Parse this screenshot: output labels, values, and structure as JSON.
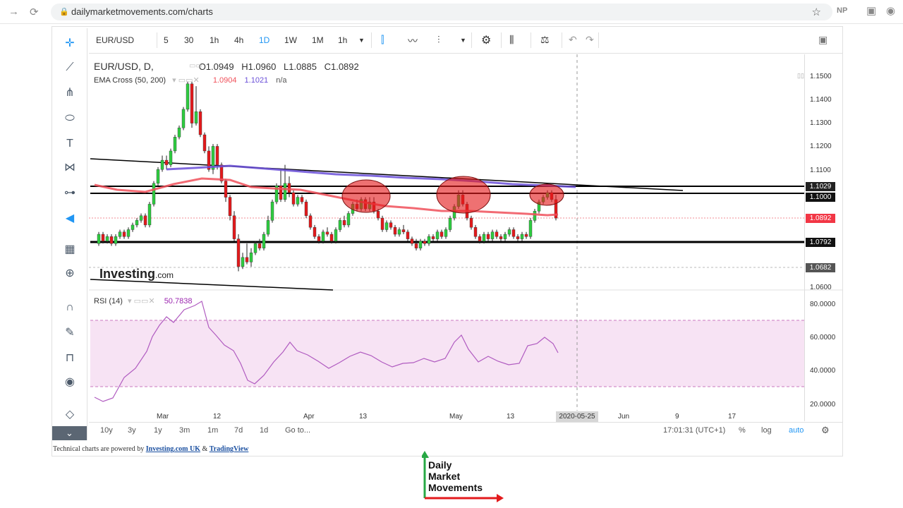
{
  "browser": {
    "url": "dailymarketmovements.com/charts",
    "ext1": "NP"
  },
  "toolbar": {
    "symbol": "EUR/USD",
    "intervals": [
      "5",
      "30",
      "1h",
      "4h",
      "1D",
      "1W",
      "1M",
      "1h"
    ],
    "active_interval": "1D"
  },
  "legend": {
    "symbol": "EUR/USD, D,",
    "open": "O1.0949",
    "high": "H1.0960",
    "low": "L1.0885",
    "close": "C1.0892",
    "ema_label": "EMA Cross (50, 200)",
    "ema_v1": "1.0904",
    "ema_v2": "1.1021",
    "ema_v3": "n/a",
    "rsi_label": "RSI (14)",
    "rsi_value": "50.7838"
  },
  "price_axis": {
    "labels": [
      "1.1500",
      "1.1400",
      "1.1300",
      "1.1200",
      "1.1100",
      "1.0600"
    ],
    "tags": [
      {
        "text": "1.1029",
        "color": "#222222"
      },
      {
        "text": "1.1000",
        "color": "#111111"
      },
      {
        "text": "1.0892",
        "color": "#f23645"
      },
      {
        "text": "1.0792",
        "color": "#111111"
      },
      {
        "text": "1.0682",
        "color": "#555555"
      }
    ],
    "rsi_labels": [
      "80.0000",
      "60.0000",
      "40.0000",
      "20.0000"
    ]
  },
  "time_axis": {
    "labels": [
      "Mar",
      "12",
      "Apr",
      "13",
      "May",
      "13",
      "Jun",
      "9",
      "17"
    ],
    "crosshair_date": "2020-05-25"
  },
  "bottom": {
    "ranges": [
      "10y",
      "3y",
      "1y",
      "3m",
      "1m",
      "7d",
      "1d"
    ],
    "goto": "Go to...",
    "clock": "17:01:31 (UTC+1)",
    "pct": "%",
    "log": "log",
    "auto": "auto"
  },
  "watermark": {
    "brand": "Investing",
    "suffix": ".com"
  },
  "footer": {
    "prefix": "Technical charts are powered by",
    "link1": "Investing.com UK",
    "amp": "&",
    "link2": "TradingView"
  },
  "brand_logo": {
    "line1": "Daily",
    "line2": "Market",
    "line3": "Movements"
  },
  "colors": {
    "accent": "#2196f3",
    "up": "#2ecc40",
    "down": "#e31a1c",
    "ema_fast": "#f0505a",
    "ema_slow": "#6a4fd8",
    "rsi_line": "#9c27b0",
    "rsi_band": "#f6e1f3"
  }
}
